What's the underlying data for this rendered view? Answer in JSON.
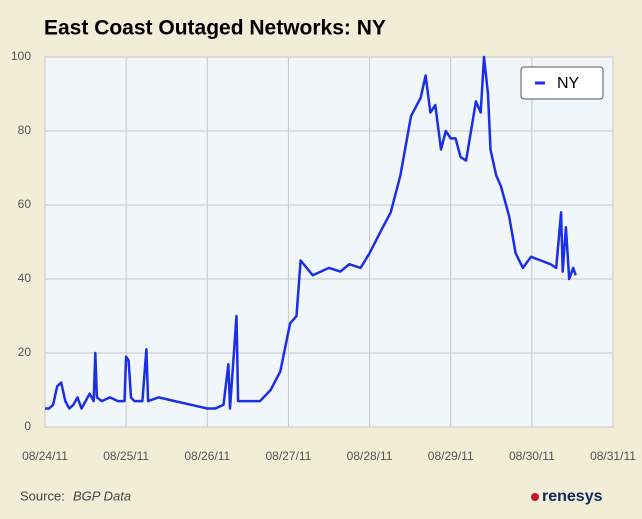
{
  "chart_data": {
    "type": "line",
    "title": "East Coast Outaged Networks: NY",
    "source": "Source:",
    "source_name": "BGP Data",
    "logo": "renesys",
    "x": [
      0,
      0.05,
      0.1,
      0.15,
      0.2,
      0.25,
      0.3,
      0.35,
      0.4,
      0.45,
      0.5,
      0.55,
      0.6,
      0.62,
      0.64,
      0.7,
      0.8,
      0.9,
      0.98,
      1.0,
      1.03,
      1.06,
      1.1,
      1.2,
      1.25,
      1.27,
      1.4,
      1.6,
      1.8,
      2.0,
      2.1,
      2.2,
      2.26,
      2.28,
      2.36,
      2.38,
      2.5,
      2.65,
      2.78,
      2.9,
      3.02,
      3.1,
      3.15,
      3.3,
      3.5,
      3.64,
      3.75,
      3.89,
      4.0,
      4.14,
      4.26,
      4.38,
      4.51,
      4.63,
      4.69,
      4.75,
      4.81,
      4.88,
      4.94,
      5.0,
      5.06,
      5.12,
      5.19,
      5.25,
      5.31,
      5.37,
      5.41,
      5.46,
      5.49,
      5.56,
      5.62,
      5.72,
      5.8,
      5.89,
      5.99,
      6.11,
      6.23,
      6.3,
      6.36,
      6.38,
      6.42,
      6.46,
      6.51,
      6.54
    ],
    "series": [
      {
        "name": "NY",
        "color": "#1a2fe6",
        "values": [
          5,
          5,
          6,
          11,
          12,
          7,
          5,
          6,
          8,
          5,
          7,
          9,
          7,
          20,
          8,
          7,
          8,
          7,
          7,
          19,
          18,
          8,
          7,
          7,
          21,
          7,
          8,
          7,
          6,
          5,
          5,
          6,
          17,
          5,
          30,
          7,
          7,
          7,
          10,
          15,
          28,
          30,
          45,
          41,
          43,
          42,
          44,
          43,
          47,
          53,
          58,
          68,
          84,
          89,
          95,
          85,
          87,
          75,
          80,
          78,
          78,
          73,
          72,
          80,
          88,
          85,
          100,
          90,
          75,
          68,
          65,
          57,
          47,
          43,
          46,
          45,
          44,
          43,
          58,
          42,
          54,
          40,
          43,
          41
        ]
      }
    ],
    "xlim": [
      0,
      7
    ],
    "xticks": [
      {
        "value": 0,
        "label": "08/24/11"
      },
      {
        "value": 1,
        "label": "08/25/11"
      },
      {
        "value": 2,
        "label": "08/26/11"
      },
      {
        "value": 3,
        "label": "08/27/11"
      },
      {
        "value": 4,
        "label": "08/28/11"
      },
      {
        "value": 5,
        "label": "08/29/11"
      },
      {
        "value": 6,
        "label": "08/30/11"
      },
      {
        "value": 7,
        "label": "08/31/11"
      }
    ],
    "ylim": [
      0,
      100
    ],
    "yticks": [
      0,
      20,
      40,
      60,
      80,
      100
    ],
    "grid": true,
    "legend": "upper right"
  }
}
